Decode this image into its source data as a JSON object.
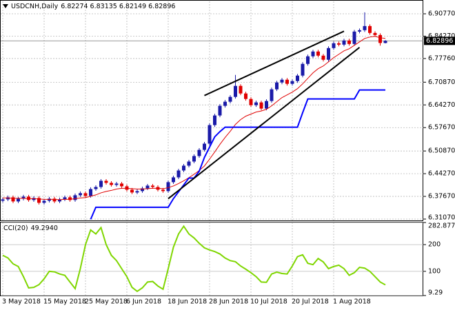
{
  "chart_data": [
    {
      "type": "candlestick",
      "title": "USDCNH,Daily",
      "quote": [
        6.82274,
        6.83135,
        6.82149,
        6.82896
      ],
      "categories": [
        "3 May 2018",
        null,
        null,
        null,
        null,
        null,
        null,
        null,
        "15 May 2018",
        null,
        null,
        null,
        null,
        null,
        null,
        null,
        "25 May 2018",
        null,
        null,
        null,
        null,
        null,
        null,
        null,
        "6 Jun 2018",
        null,
        null,
        null,
        null,
        null,
        null,
        null,
        "18 Jun 2018",
        null,
        null,
        null,
        null,
        null,
        null,
        null,
        "28 Jun 2018",
        null,
        null,
        null,
        null,
        null,
        null,
        null,
        "10 Jul 2018",
        null,
        null,
        null,
        null,
        null,
        null,
        null,
        "20 Jul 2018",
        null,
        null,
        null,
        null,
        null,
        null,
        null,
        "1 Aug 2018",
        null,
        null,
        null,
        null,
        null,
        null,
        null,
        null,
        null,
        null
      ],
      "open": [
        6.364,
        6.368,
        6.374,
        6.362,
        6.37,
        6.376,
        6.366,
        6.372,
        6.358,
        6.364,
        6.37,
        6.362,
        6.368,
        6.374,
        6.366,
        6.38,
        6.386,
        6.378,
        6.398,
        6.404,
        6.422,
        6.416,
        6.41,
        6.414,
        6.406,
        6.396,
        6.388,
        6.392,
        6.4,
        6.408,
        6.404,
        6.396,
        6.392,
        6.418,
        6.432,
        6.452,
        6.466,
        6.478,
        6.494,
        6.512,
        6.53,
        6.584,
        6.612,
        6.64,
        6.652,
        6.666,
        6.698,
        6.676,
        6.66,
        6.642,
        6.65,
        6.632,
        6.654,
        6.688,
        6.708,
        6.716,
        6.704,
        6.712,
        6.728,
        6.762,
        6.784,
        6.798,
        6.786,
        6.774,
        6.808,
        6.822,
        6.818,
        6.83,
        6.82,
        6.856,
        6.86,
        6.872,
        6.852,
        6.846,
        6.82274
      ],
      "high": [
        6.373,
        6.379,
        6.379,
        6.375,
        6.381,
        6.381,
        6.377,
        6.377,
        6.369,
        6.375,
        6.375,
        6.373,
        6.379,
        6.379,
        6.385,
        6.391,
        6.391,
        6.403,
        6.409,
        6.427,
        6.427,
        6.421,
        6.419,
        6.419,
        6.411,
        6.401,
        6.397,
        6.405,
        6.413,
        6.413,
        6.409,
        6.401,
        6.423,
        6.437,
        6.457,
        6.471,
        6.483,
        6.499,
        6.517,
        6.535,
        6.589,
        6.617,
        6.645,
        6.657,
        6.671,
        6.73,
        6.703,
        6.681,
        6.665,
        6.655,
        6.655,
        6.659,
        6.693,
        6.713,
        6.721,
        6.721,
        6.717,
        6.733,
        6.767,
        6.789,
        6.803,
        6.803,
        6.791,
        6.813,
        6.827,
        6.827,
        6.835,
        6.835,
        6.861,
        6.865,
        6.912,
        6.877,
        6.857,
        6.851,
        6.83135
      ],
      "low": [
        6.359,
        6.363,
        6.357,
        6.357,
        6.365,
        6.361,
        6.361,
        6.353,
        6.353,
        6.359,
        6.357,
        6.357,
        6.363,
        6.361,
        6.361,
        6.375,
        6.373,
        6.373,
        6.393,
        6.399,
        6.411,
        6.405,
        6.405,
        6.401,
        6.391,
        6.383,
        6.383,
        6.387,
        6.395,
        6.399,
        6.391,
        6.387,
        6.387,
        6.413,
        6.427,
        6.447,
        6.461,
        6.473,
        6.489,
        6.507,
        6.525,
        6.579,
        6.607,
        6.635,
        6.647,
        6.661,
        6.671,
        6.655,
        6.637,
        6.637,
        6.627,
        6.627,
        6.649,
        6.683,
        6.703,
        6.699,
        6.699,
        6.707,
        6.723,
        6.757,
        6.779,
        6.781,
        6.769,
        6.769,
        6.803,
        6.813,
        6.813,
        6.815,
        6.815,
        6.851,
        6.855,
        6.847,
        6.841,
        6.815,
        6.82149
      ],
      "close": [
        6.368,
        6.374,
        6.362,
        6.37,
        6.376,
        6.366,
        6.372,
        6.358,
        6.364,
        6.37,
        6.362,
        6.368,
        6.374,
        6.366,
        6.38,
        6.386,
        6.378,
        6.398,
        6.404,
        6.422,
        6.416,
        6.41,
        6.414,
        6.406,
        6.396,
        6.388,
        6.392,
        6.4,
        6.408,
        6.404,
        6.396,
        6.392,
        6.418,
        6.432,
        6.452,
        6.466,
        6.478,
        6.494,
        6.512,
        6.53,
        6.584,
        6.612,
        6.64,
        6.652,
        6.666,
        6.698,
        6.676,
        6.66,
        6.642,
        6.65,
        6.632,
        6.654,
        6.688,
        6.708,
        6.716,
        6.704,
        6.712,
        6.728,
        6.762,
        6.784,
        6.798,
        6.786,
        6.774,
        6.808,
        6.822,
        6.818,
        6.83,
        6.82,
        6.856,
        6.86,
        6.872,
        6.852,
        6.846,
        6.82274,
        6.82896
      ],
      "up_color": "#1a1aa8",
      "down_color": "#e00000",
      "overlays": [
        {
          "color": "#e00000",
          "values": [
            6.372,
            6.372,
            6.371,
            6.371,
            6.371,
            6.37,
            6.37,
            6.369,
            6.368,
            6.368,
            6.368,
            6.367,
            6.368,
            6.368,
            6.37,
            6.372,
            6.373,
            6.377,
            6.381,
            6.387,
            6.391,
            6.394,
            6.398,
            6.4,
            6.4,
            6.399,
            6.398,
            6.398,
            6.399,
            6.4,
            6.4,
            6.399,
            6.402,
            6.407,
            6.414,
            6.422,
            6.431,
            6.441,
            6.452,
            6.465,
            6.485,
            6.506,
            6.528,
            6.548,
            6.566,
            6.586,
            6.6,
            6.61,
            6.616,
            6.622,
            6.625,
            6.63,
            6.64,
            6.652,
            6.664,
            6.672,
            6.68,
            6.69,
            6.704,
            6.72,
            6.736,
            6.748,
            6.756,
            6.768,
            6.78,
            6.79,
            6.8,
            6.806,
            6.816,
            6.826,
            6.836,
            6.84,
            6.842,
            6.838,
            6.836
          ]
        },
        {
          "color": "#0000ff",
          "values": [
            null,
            null,
            null,
            null,
            null,
            null,
            null,
            null,
            null,
            null,
            null,
            null,
            null,
            null,
            null,
            null,
            null,
            6.31,
            6.345,
            6.345,
            6.345,
            6.345,
            6.345,
            6.345,
            6.345,
            6.345,
            6.345,
            6.345,
            6.345,
            6.345,
            6.345,
            6.345,
            6.345,
            6.37,
            6.39,
            6.41,
            6.43,
            6.43,
            6.45,
            6.49,
            6.52,
            6.55,
            6.565,
            6.578,
            6.578,
            6.578,
            6.578,
            6.578,
            6.578,
            6.578,
            6.578,
            6.578,
            6.578,
            6.578,
            6.578,
            6.578,
            6.578,
            6.578,
            6.62,
            6.66,
            6.66,
            6.66,
            6.66,
            6.66,
            6.66,
            6.66,
            6.66,
            6.66,
            6.66,
            6.686,
            6.686,
            6.686,
            6.686,
            6.686,
            6.686
          ]
        }
      ],
      "trendlines": [
        {
          "start": [
            39,
            6.67
          ],
          "end": [
            66,
            6.857
          ]
        },
        {
          "start": [
            32,
            6.37
          ],
          "end": [
            69,
            6.81
          ]
        }
      ],
      "ylim": [
        6.3067,
        6.9438
      ],
      "yticks": [
        {
          "value": 6.9077,
          "label": "6.90770"
        },
        {
          "value": 6.8427,
          "label": "6.84270"
        },
        {
          "value": 6.7776,
          "label": "6.77760"
        },
        {
          "value": 6.7087,
          "label": "6.70870"
        },
        {
          "value": 6.6427,
          "label": "6.64270"
        },
        {
          "value": 6.5767,
          "label": "6.57670"
        },
        {
          "value": 6.5087,
          "label": "6.50870"
        },
        {
          "value": 6.4427,
          "label": "6.44270"
        },
        {
          "value": 6.3767,
          "label": "6.37670"
        },
        {
          "value": 6.3107,
          "label": "6.31070"
        }
      ],
      "grid": true
    },
    {
      "type": "line",
      "title": "CCI(20)",
      "current": {
        "value": 49.294,
        "label": "49.2940"
      },
      "color": "#7fd600",
      "values": [
        160,
        150,
        128,
        118,
        80,
        38,
        40,
        50,
        72,
        100,
        98,
        90,
        85,
        60,
        35,
        110,
        200,
        255,
        240,
        264,
        200,
        160,
        140,
        110,
        80,
        40,
        25,
        38,
        60,
        62,
        45,
        33,
        110,
        190,
        240,
        269,
        240,
        225,
        205,
        188,
        180,
        174,
        165,
        150,
        140,
        136,
        120,
        108,
        95,
        80,
        60,
        59,
        90,
        97,
        92,
        90,
        120,
        155,
        162,
        130,
        125,
        148,
        135,
        110,
        118,
        123,
        110,
        85,
        95,
        115,
        112,
        100,
        80,
        60,
        49.294
      ],
      "ylim": [
        9.29,
        282.8772
      ],
      "yticks": [
        282.8772,
        200,
        100,
        9.29
      ],
      "grid": true
    }
  ]
}
